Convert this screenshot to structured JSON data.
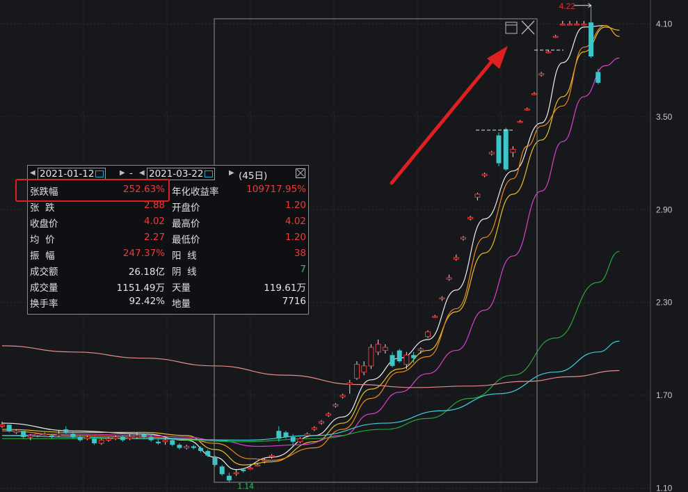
{
  "chart_data": {
    "type": "candlestick",
    "y_axis": {
      "position": "right",
      "ticks": [
        4.1,
        3.5,
        2.9,
        2.3,
        1.7,
        1.1
      ],
      "tick_labels": [
        "4.10",
        "3.50",
        "2.90",
        "2.30",
        "1.70",
        "1.10"
      ],
      "range": [
        1.075,
        4.255
      ]
    },
    "annotations": {
      "low_label": "1.14",
      "high_label": "4.22"
    },
    "colors": {
      "up": "#e23b3b",
      "down": "#3ec5c8",
      "ma5": "#f0f0f0",
      "ma10": "#e8c22a",
      "ma20": "#e040d0",
      "ma30": "#f08a1a",
      "ma60": "#2aa63a",
      "ma120": "#3fd2dc",
      "ma250": "#e98a8a",
      "selection": "#8e8e8e",
      "arrow": "#e02020"
    },
    "candles": [
      [
        1.5,
        1.53,
        1.49,
        1.51
      ],
      [
        1.51,
        1.5,
        1.46,
        1.47
      ],
      [
        1.46,
        1.48,
        1.45,
        1.47
      ],
      [
        1.47,
        1.46,
        1.42,
        1.43
      ],
      [
        1.43,
        1.45,
        1.41,
        1.44
      ],
      [
        1.44,
        1.45,
        1.43,
        1.45
      ],
      [
        1.45,
        1.46,
        1.44,
        1.45
      ],
      [
        1.44,
        1.45,
        1.42,
        1.43
      ],
      [
        1.44,
        1.47,
        1.43,
        1.45
      ],
      [
        1.48,
        1.5,
        1.45,
        1.46
      ],
      [
        1.45,
        1.47,
        1.42,
        1.43
      ],
      [
        1.43,
        1.44,
        1.4,
        1.41
      ],
      [
        1.42,
        1.44,
        1.41,
        1.43
      ],
      [
        1.42,
        1.43,
        1.38,
        1.39
      ],
      [
        1.39,
        1.42,
        1.38,
        1.41
      ],
      [
        1.41,
        1.43,
        1.4,
        1.42
      ],
      [
        1.42,
        1.44,
        1.41,
        1.43
      ],
      [
        1.43,
        1.44,
        1.4,
        1.41
      ],
      [
        1.42,
        1.45,
        1.41,
        1.43
      ],
      [
        1.43,
        1.46,
        1.42,
        1.44
      ],
      [
        1.45,
        1.46,
        1.42,
        1.43
      ],
      [
        1.43,
        1.45,
        1.4,
        1.41
      ],
      [
        1.4,
        1.42,
        1.38,
        1.39
      ],
      [
        1.4,
        1.42,
        1.38,
        1.41
      ],
      [
        1.41,
        1.42,
        1.37,
        1.38
      ],
      [
        1.38,
        1.39,
        1.35,
        1.36
      ],
      [
        1.36,
        1.38,
        1.35,
        1.37
      ],
      [
        1.37,
        1.38,
        1.35,
        1.36
      ],
      [
        1.36,
        1.37,
        1.33,
        1.34
      ],
      [
        1.34,
        1.35,
        1.3,
        1.31
      ],
      [
        1.3,
        1.31,
        1.24,
        1.25
      ],
      [
        1.24,
        1.25,
        1.18,
        1.19
      ],
      [
        1.18,
        1.2,
        1.14,
        1.15
      ],
      [
        1.2,
        1.22,
        1.18,
        1.2
      ],
      [
        1.22,
        1.23,
        1.2,
        1.21
      ],
      [
        1.23,
        1.24,
        1.22,
        1.23
      ],
      [
        1.25,
        1.26,
        1.24,
        1.25
      ],
      [
        1.28,
        1.29,
        1.26,
        1.28
      ],
      [
        1.31,
        1.32,
        1.29,
        1.31
      ],
      [
        1.47,
        1.5,
        1.4,
        1.42
      ],
      [
        1.46,
        1.47,
        1.42,
        1.43
      ],
      [
        1.43,
        1.45,
        1.38,
        1.4
      ],
      [
        1.4,
        1.43,
        1.39,
        1.42
      ],
      [
        1.44,
        1.46,
        1.43,
        1.45
      ],
      [
        1.48,
        1.5,
        1.47,
        1.49
      ],
      [
        1.52,
        1.54,
        1.51,
        1.53
      ],
      [
        1.57,
        1.59,
        1.56,
        1.58
      ],
      [
        1.63,
        1.65,
        1.62,
        1.64
      ],
      [
        1.69,
        1.71,
        1.68,
        1.7
      ],
      [
        1.77,
        1.8,
        1.71,
        1.78
      ],
      [
        1.81,
        1.92,
        1.8,
        1.9
      ],
      [
        1.85,
        1.92,
        1.83,
        1.89
      ],
      [
        1.89,
        2.03,
        1.87,
        2.01
      ],
      [
        1.98,
        2.06,
        1.96,
        2.03
      ],
      [
        1.99,
        2.03,
        1.97,
        2.01
      ],
      [
        1.96,
        1.98,
        1.88,
        1.89
      ],
      [
        1.99,
        2.0,
        1.91,
        1.92
      ],
      [
        1.9,
        1.98,
        1.87,
        1.96
      ],
      [
        1.96,
        1.98,
        1.91,
        1.94
      ],
      [
        1.99,
        2.01,
        1.97,
        2.0
      ],
      [
        2.08,
        2.12,
        2.07,
        2.11
      ],
      [
        2.21,
        2.22,
        2.2,
        2.21
      ],
      [
        2.33,
        2.34,
        2.31,
        2.33
      ],
      [
        2.45,
        2.48,
        2.44,
        2.46
      ],
      [
        2.58,
        2.61,
        2.57,
        2.59
      ],
      [
        2.71,
        2.73,
        2.7,
        2.72
      ],
      [
        2.84,
        2.86,
        2.83,
        2.85
      ],
      [
        2.98,
        3.01,
        2.96,
        3.0
      ],
      [
        3.12,
        3.14,
        3.11,
        3.13
      ],
      [
        3.26,
        3.28,
        3.25,
        3.27
      ],
      [
        3.38,
        3.4,
        3.18,
        3.2
      ],
      [
        3.42,
        3.43,
        3.15,
        3.16
      ],
      [
        3.27,
        3.31,
        3.24,
        3.29
      ],
      [
        3.47,
        3.48,
        3.46,
        3.47
      ],
      [
        3.55,
        3.56,
        3.54,
        3.55
      ],
      [
        3.65,
        3.66,
        3.64,
        3.65
      ],
      [
        3.77,
        3.79,
        3.76,
        3.78
      ],
      [
        3.92,
        3.93,
        3.91,
        3.92
      ],
      [
        4.02,
        4.03,
        4.01,
        4.02
      ],
      [
        4.1,
        4.12,
        4.09,
        4.1
      ],
      [
        4.1,
        4.12,
        4.09,
        4.1
      ],
      [
        4.1,
        4.12,
        4.09,
        4.1
      ],
      [
        4.1,
        4.12,
        4.09,
        4.1
      ],
      [
        4.11,
        4.22,
        3.88,
        3.89
      ],
      [
        3.79,
        3.81,
        3.71,
        3.72
      ]
    ],
    "moving_averages": [
      {
        "key": "ma5",
        "points": [
          [
            0,
            1.52
          ],
          [
            10,
            1.47
          ],
          [
            20,
            1.45
          ],
          [
            26,
            1.41
          ],
          [
            30,
            1.3
          ],
          [
            33,
            1.22
          ],
          [
            38,
            1.3
          ],
          [
            44,
            1.44
          ],
          [
            48,
            1.56
          ],
          [
            52,
            1.8
          ],
          [
            56,
            1.94
          ],
          [
            60,
            2.06
          ],
          [
            64,
            2.38
          ],
          [
            68,
            2.84
          ],
          [
            72,
            3.15
          ],
          [
            76,
            3.46
          ],
          [
            79,
            3.85
          ],
          [
            82,
            4.08
          ],
          [
            85,
            4.09
          ],
          [
            87,
            4.02
          ]
        ]
      },
      {
        "key": "ma10",
        "points": [
          [
            0,
            1.48
          ],
          [
            10,
            1.46
          ],
          [
            20,
            1.46
          ],
          [
            26,
            1.44
          ],
          [
            30,
            1.35
          ],
          [
            34,
            1.25
          ],
          [
            38,
            1.27
          ],
          [
            44,
            1.4
          ],
          [
            48,
            1.52
          ],
          [
            52,
            1.74
          ],
          [
            56,
            1.87
          ],
          [
            60,
            1.99
          ],
          [
            64,
            2.24
          ],
          [
            68,
            2.62
          ],
          [
            72,
            3.0
          ],
          [
            76,
            3.35
          ],
          [
            79,
            3.63
          ],
          [
            82,
            3.92
          ],
          [
            85,
            4.08
          ],
          [
            87,
            4.06
          ]
        ]
      },
      {
        "key": "ma20",
        "points": [
          [
            0,
            1.44
          ],
          [
            10,
            1.45
          ],
          [
            20,
            1.44
          ],
          [
            26,
            1.43
          ],
          [
            30,
            1.41
          ],
          [
            36,
            1.37
          ],
          [
            42,
            1.38
          ],
          [
            48,
            1.44
          ],
          [
            52,
            1.58
          ],
          [
            56,
            1.72
          ],
          [
            60,
            1.84
          ],
          [
            64,
            1.99
          ],
          [
            68,
            2.25
          ],
          [
            72,
            2.6
          ],
          [
            76,
            3.02
          ],
          [
            79,
            3.34
          ],
          [
            82,
            3.63
          ],
          [
            85,
            3.83
          ],
          [
            87,
            3.88
          ]
        ]
      },
      {
        "key": "ma30",
        "points": [
          [
            0,
            1.47
          ],
          [
            10,
            1.44
          ],
          [
            20,
            1.43
          ],
          [
            26,
            1.42
          ],
          [
            30,
            1.39
          ],
          [
            35,
            1.29
          ],
          [
            38,
            1.28
          ],
          [
            44,
            1.36
          ],
          [
            48,
            1.48
          ],
          [
            52,
            1.68
          ],
          [
            56,
            1.85
          ],
          [
            60,
            1.95
          ],
          [
            64,
            2.26
          ],
          [
            68,
            2.72
          ],
          [
            72,
            3.1
          ],
          [
            74,
            3.31
          ],
          [
            76,
            3.44
          ],
          [
            79,
            3.57
          ],
          [
            82,
            3.95
          ],
          [
            85,
            4.09
          ],
          [
            87,
            4.02
          ]
        ]
      },
      {
        "key": "ma60",
        "points": [
          [
            0,
            1.42
          ],
          [
            20,
            1.42
          ],
          [
            34,
            1.4
          ],
          [
            44,
            1.42
          ],
          [
            54,
            1.48
          ],
          [
            60,
            1.55
          ],
          [
            66,
            1.68
          ],
          [
            72,
            1.83
          ],
          [
            78,
            2.07
          ],
          [
            84,
            2.43
          ],
          [
            87,
            2.63
          ]
        ]
      },
      {
        "key": "ma120",
        "points": [
          [
            0,
            1.44
          ],
          [
            10,
            1.43
          ],
          [
            20,
            1.42
          ],
          [
            34,
            1.41
          ],
          [
            44,
            1.44
          ],
          [
            54,
            1.52
          ],
          [
            62,
            1.6
          ],
          [
            70,
            1.71
          ],
          [
            78,
            1.85
          ],
          [
            84,
            1.98
          ],
          [
            87,
            2.05
          ]
        ]
      },
      {
        "key": "ma250",
        "points": [
          [
            0,
            2.02
          ],
          [
            10,
            1.98
          ],
          [
            20,
            1.94
          ],
          [
            30,
            1.89
          ],
          [
            40,
            1.83
          ],
          [
            50,
            1.77
          ],
          [
            58,
            1.75
          ],
          [
            66,
            1.76
          ],
          [
            74,
            1.79
          ],
          [
            80,
            1.82
          ],
          [
            87,
            1.86
          ]
        ]
      }
    ]
  },
  "stats_panel": {
    "start_date": "2021-01-12",
    "end_date": "2021-03-22",
    "separator": "-",
    "days": "(45日)",
    "rows": [
      {
        "k1": "张跌幅",
        "v1": "252.63%",
        "c1": "red",
        "k2": "年化收益率",
        "v2": "109717.95%",
        "c2": "red"
      },
      {
        "k1": "张  跌",
        "v1": "2.88",
        "c1": "red",
        "k2": "开盘价",
        "v2": "1.20",
        "c2": "red"
      },
      {
        "k1": "收盘价",
        "v1": "4.02",
        "c1": "red",
        "k2": "最高价",
        "v2": "4.02",
        "c2": "red"
      },
      {
        "k1": "均  价",
        "v1": "2.27",
        "c1": "red",
        "k2": "最低价",
        "v2": "1.20",
        "c2": "red"
      },
      {
        "k1": "振  幅",
        "v1": "247.37%",
        "c1": "red",
        "k2": "阳  线",
        "v2": "38",
        "c2": "red"
      },
      {
        "k1": "成交额",
        "v1": "26.18亿",
        "c1": "white",
        "k2": "阴  线",
        "v2": "7",
        "c2": "green"
      },
      {
        "k1": "成交量",
        "v1": "1151.49万",
        "c1": "white",
        "k2": "天量",
        "v2": "119.61万",
        "c2": "white"
      },
      {
        "k1": "换手率",
        "v1": "92.42%",
        "c1": "white",
        "k2": "地量",
        "v2": "7716",
        "c2": "white"
      }
    ]
  }
}
